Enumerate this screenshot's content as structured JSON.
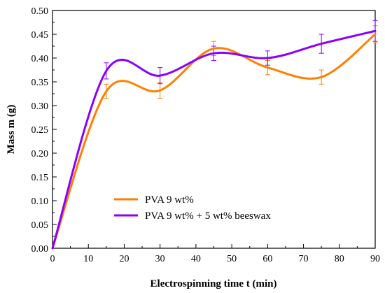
{
  "chart_data": {
    "type": "line",
    "title": "",
    "xlabel": "Electrospinning time t (min)",
    "ylabel": "Mass m (g)",
    "xlim": [
      0,
      90
    ],
    "ylim": [
      0,
      0.5
    ],
    "x_ticks": [
      "0",
      "10",
      "20",
      "30",
      "40",
      "50",
      "60",
      "70",
      "80",
      "90"
    ],
    "y_ticks": [
      "0.00",
      "0.05",
      "0.10",
      "0.15",
      "0.20",
      "0.25",
      "0.30",
      "0.35",
      "0.40",
      "0.45",
      "0.50"
    ],
    "grid": false,
    "smooth": true,
    "legend_position": "lower-center",
    "series": [
      {
        "name": "PVA 9 wt%",
        "color": "#ff8000",
        "x": [
          0,
          15,
          30,
          45,
          60,
          75,
          90
        ],
        "y": [
          0.0,
          0.33,
          0.332,
          0.42,
          0.38,
          0.36,
          0.45
        ],
        "err": [
          0,
          0.015,
          0.017,
          0.015,
          0.015,
          0.015,
          0.018
        ]
      },
      {
        "name": "PVA 9 wt% + 5 wt% beeswax",
        "color": "#8b00ff",
        "x": [
          0,
          15,
          30,
          45,
          60,
          75,
          90
        ],
        "y": [
          0.0,
          0.373,
          0.363,
          0.41,
          0.4,
          0.43,
          0.457
        ],
        "err": [
          0,
          0.017,
          0.017,
          0.015,
          0.015,
          0.02,
          0.022
        ]
      }
    ]
  }
}
